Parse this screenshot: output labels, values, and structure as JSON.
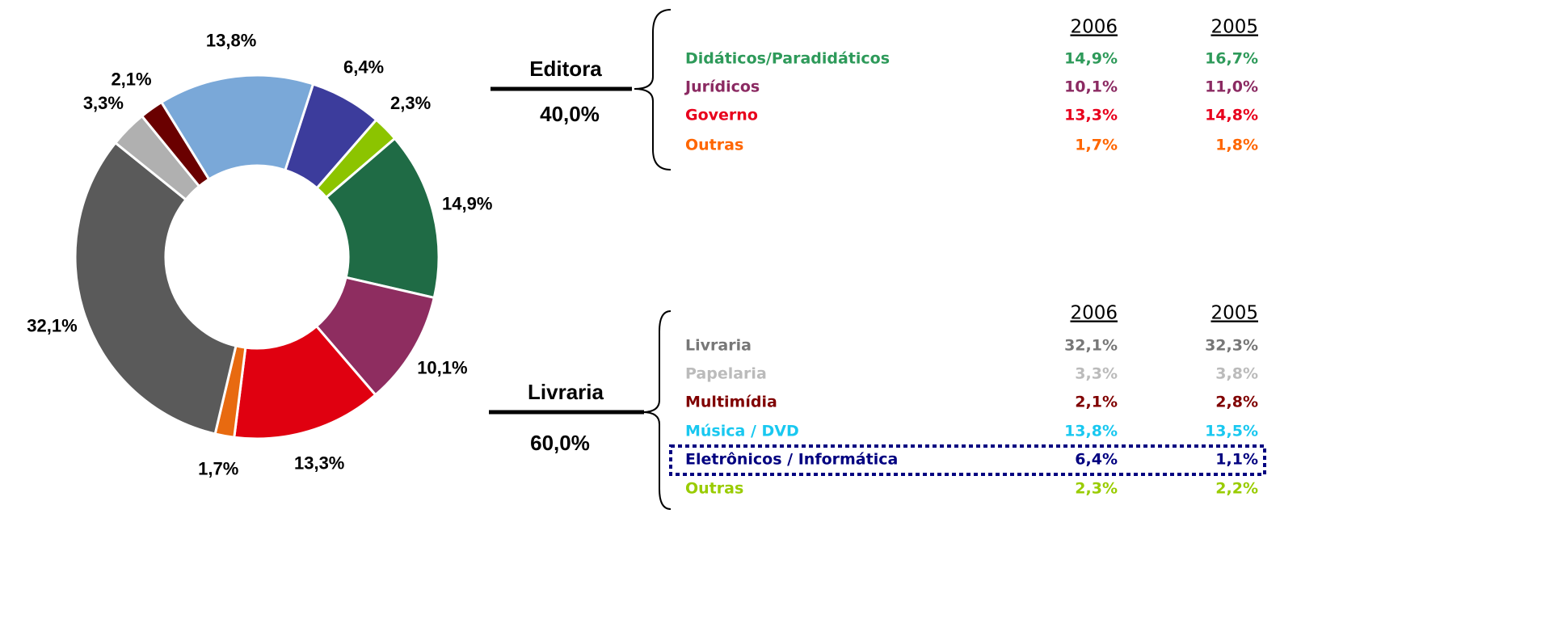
{
  "chart_data": {
    "type": "pie",
    "donut": true,
    "values": [
      6.4,
      2.3,
      14.9,
      10.1,
      13.3,
      1.7,
      32.1,
      3.3,
      2.1,
      13.8
    ],
    "value_labels": [
      "6,4%",
      "2,3%",
      "14,9%",
      "10,1%",
      "13,3%",
      "1,7%",
      "32,1%",
      "3,3%",
      "2,1%",
      "13,8%"
    ],
    "colors": [
      "#3c3c9c",
      "#8cc400",
      "#1f6b45",
      "#8e2d60",
      "#e00010",
      "#e86a10",
      "#5a5a5a",
      "#b0b0b0",
      "#6a0000",
      "#7aa8d8"
    ]
  },
  "groups": [
    {
      "label": "Editora",
      "share": "40,0%",
      "columns": [
        "2006",
        "2005"
      ],
      "rows": [
        [
          "Didáticos/Paradidáticos",
          "14,9%",
          "16,7%"
        ],
        [
          "Jurídicos",
          "10,1%",
          "11,0%"
        ],
        [
          "Governo",
          "13,3%",
          "14,8%"
        ],
        [
          "Outras",
          "1,7%",
          "1,8%"
        ]
      ],
      "row_colors": [
        "#2e9a5a",
        "#8b2a62",
        "#e8001c",
        "#ff6600"
      ]
    },
    {
      "label": "Livraria",
      "share": "60,0%",
      "columns": [
        "2006",
        "2005"
      ],
      "rows": [
        [
          "Livraria",
          "32,1%",
          "32,3%"
        ],
        [
          "Papelaria",
          "3,3%",
          "3,8%"
        ],
        [
          "Multimídia",
          "2,1%",
          "2,8%"
        ],
        [
          "Música / DVD",
          "13,8%",
          "13,5%"
        ],
        [
          "Eletrônicos / Informática",
          "6,4%",
          "1,1%"
        ],
        [
          "Outras",
          "2,3%",
          "2,2%"
        ]
      ],
      "row_colors": [
        "#777777",
        "#bbbbbb",
        "#800000",
        "#19c8f0",
        "#000080",
        "#99cc00"
      ]
    }
  ]
}
